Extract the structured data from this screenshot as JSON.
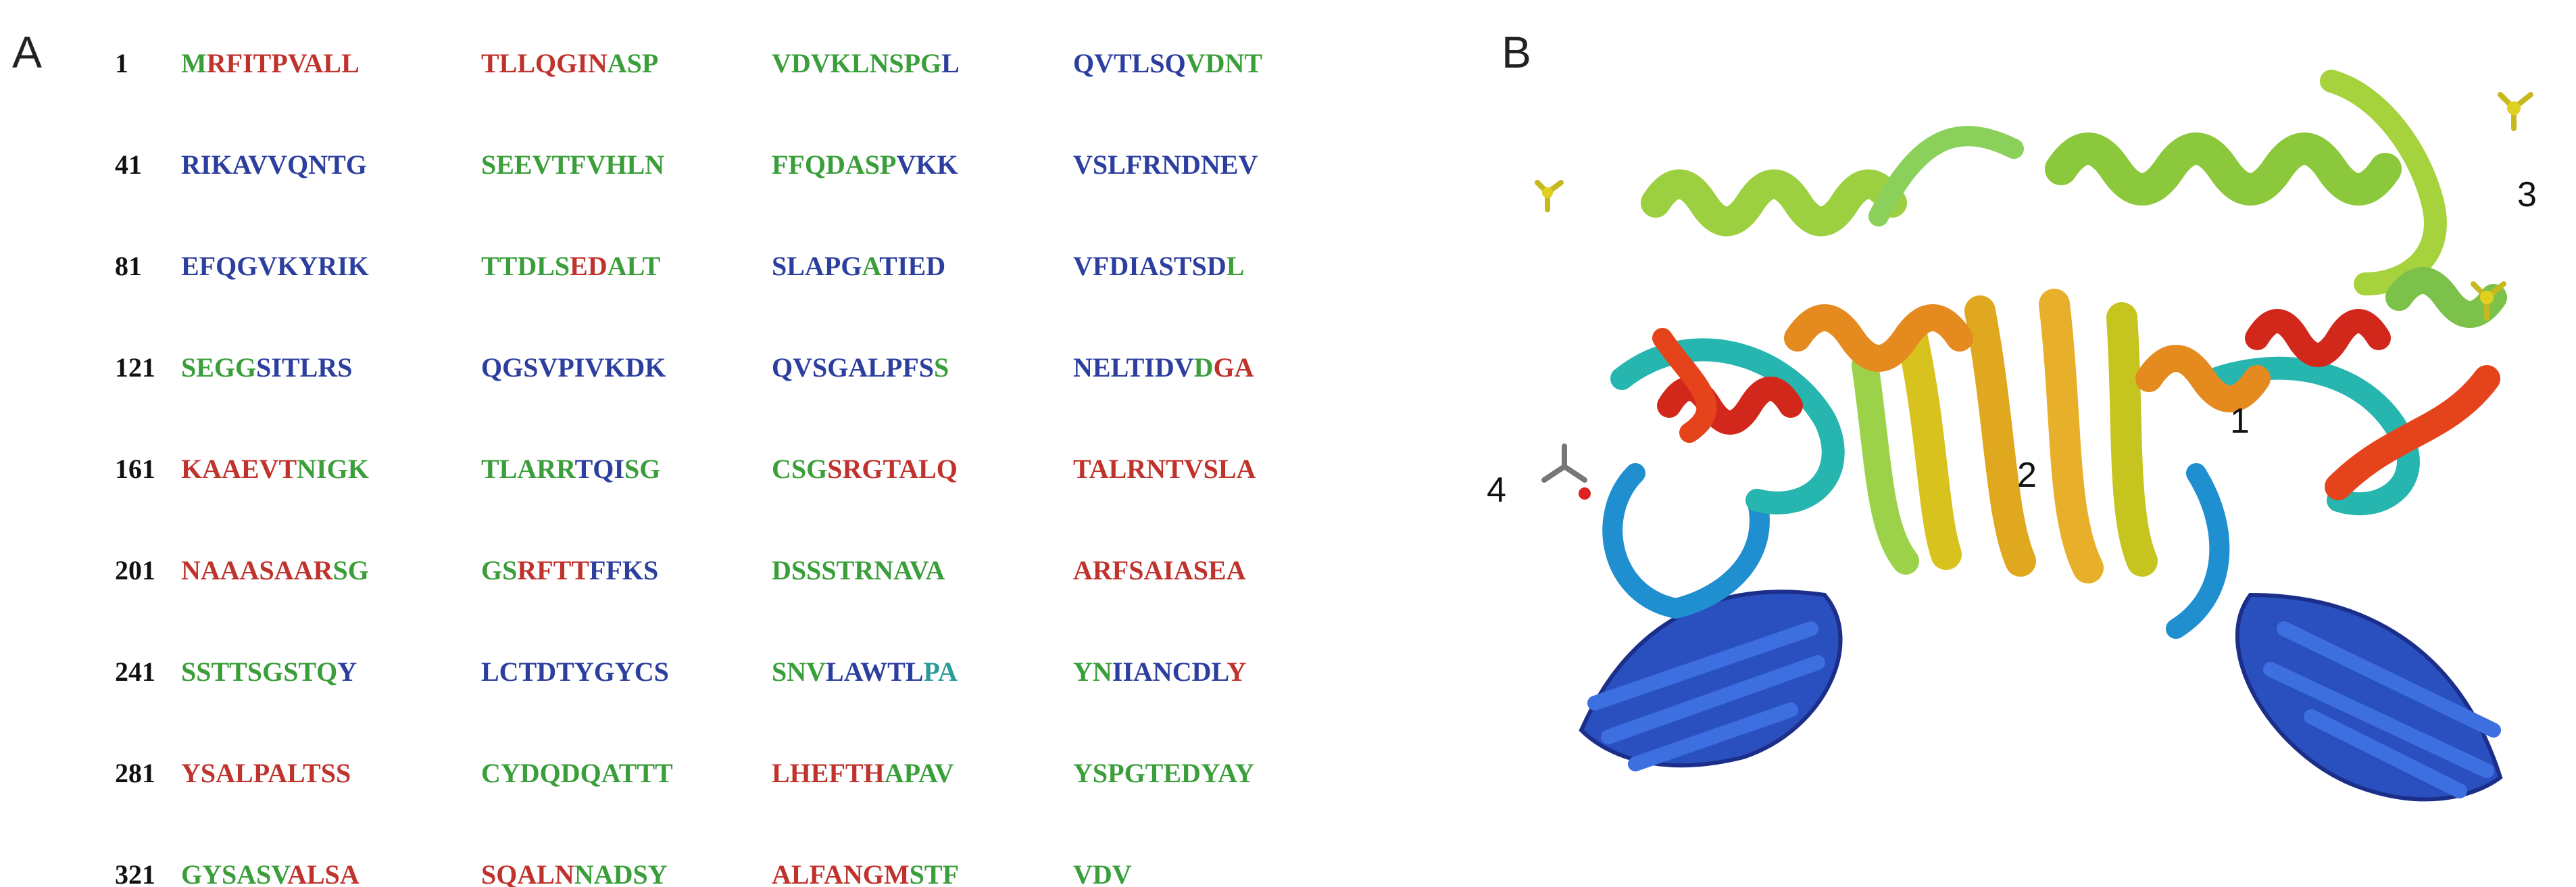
{
  "panels": [
    {
      "label": "A"
    },
    {
      "label": "B",
      "site_labels": [
        "1",
        "2",
        "3",
        "4"
      ]
    }
  ],
  "sequence": {
    "rows": [
      {
        "number": 1,
        "blocks": [
          [
            {
              "text": "M",
              "color": "#3a9e3a"
            },
            {
              "text": "RFITPVALL",
              "color": "#c0322c"
            }
          ],
          [
            {
              "text": "TLLQGIN",
              "color": "#c0322c"
            },
            {
              "text": "ASP",
              "color": "#3a9e3a"
            }
          ],
          [
            {
              "text": "VDVKLNSPG",
              "color": "#3a9e3a"
            },
            {
              "text": "L",
              "color": "#2d3f9e"
            }
          ],
          [
            {
              "text": "QVTLSQ",
              "color": "#2d3f9e"
            },
            {
              "text": "VDNT",
              "color": "#3a9e3a"
            }
          ]
        ]
      },
      {
        "number": 41,
        "blocks": [
          [
            {
              "text": "RIKAVVQNTG",
              "color": "#2d3f9e"
            }
          ],
          [
            {
              "text": "SEEVTFVHLN",
              "color": "#3a9e3a"
            }
          ],
          [
            {
              "text": "FFQDASP",
              "color": "#3a9e3a"
            },
            {
              "text": "VKK",
              "color": "#2d3f9e"
            }
          ],
          [
            {
              "text": "VSLFRNDNEV",
              "color": "#2d3f9e"
            }
          ]
        ]
      },
      {
        "number": 81,
        "blocks": [
          [
            {
              "text": "EFQGVKYRIK",
              "color": "#2d3f9e"
            }
          ],
          [
            {
              "text": "TTDLS",
              "color": "#3a9e3a"
            },
            {
              "text": "ED",
              "color": "#c0322c"
            },
            {
              "text": "ALT",
              "color": "#3a9e3a"
            }
          ],
          [
            {
              "text": "SLAPG",
              "color": "#2d3f9e"
            },
            {
              "text": "A",
              "color": "#3a9e3a"
            },
            {
              "text": "TIED",
              "color": "#2d3f9e"
            }
          ],
          [
            {
              "text": "VFDIASTSD",
              "color": "#2d3f9e"
            },
            {
              "text": "L",
              "color": "#3a9e3a"
            }
          ]
        ]
      },
      {
        "number": 121,
        "blocks": [
          [
            {
              "text": "SEGG",
              "color": "#3a9e3a"
            },
            {
              "text": "SITLRS",
              "color": "#2d3f9e"
            }
          ],
          [
            {
              "text": "QGSVPIVKDK",
              "color": "#2d3f9e"
            }
          ],
          [
            {
              "text": "QVSGALPFS",
              "color": "#2d3f9e"
            },
            {
              "text": "S",
              "color": "#3a9e3a"
            }
          ],
          [
            {
              "text": "NELTIDV",
              "color": "#2d3f9e"
            },
            {
              "text": "D",
              "color": "#3a9e3a"
            },
            {
              "text": "GA",
              "color": "#c0322c"
            }
          ]
        ]
      },
      {
        "number": 161,
        "blocks": [
          [
            {
              "text": "KAAEVT",
              "color": "#c0322c"
            },
            {
              "text": "NIGK",
              "color": "#3a9e3a"
            }
          ],
          [
            {
              "text": "TLARR",
              "color": "#3a9e3a"
            },
            {
              "text": "TQI",
              "color": "#2d3f9e"
            },
            {
              "text": "SG",
              "color": "#3a9e3a"
            }
          ],
          [
            {
              "text": "CSG",
              "color": "#3a9e3a"
            },
            {
              "text": "SRGTALQ",
              "color": "#c0322c"
            }
          ],
          [
            {
              "text": "TALRNTVSLA",
              "color": "#c0322c"
            }
          ]
        ]
      },
      {
        "number": 201,
        "blocks": [
          [
            {
              "text": "NAAASAAR",
              "color": "#c0322c"
            },
            {
              "text": "SG",
              "color": "#3a9e3a"
            }
          ],
          [
            {
              "text": "GS",
              "color": "#3a9e3a"
            },
            {
              "text": "RFTT",
              "color": "#c0322c"
            },
            {
              "text": "FFKS",
              "color": "#2d3f9e"
            }
          ],
          [
            {
              "text": "DSSSTRNAVA",
              "color": "#3a9e3a"
            }
          ],
          [
            {
              "text": "ARFSAIASEA",
              "color": "#c0322c"
            }
          ]
        ]
      },
      {
        "number": 241,
        "blocks": [
          [
            {
              "text": "SSTTSGSTQ",
              "color": "#3a9e3a"
            },
            {
              "text": "Y",
              "color": "#2d3f9e"
            }
          ],
          [
            {
              "text": "LCTDTYGYCS",
              "color": "#2d3f9e"
            }
          ],
          [
            {
              "text": "SNV",
              "color": "#3a9e3a"
            },
            {
              "text": "LAWTL",
              "color": "#2d3f9e"
            },
            {
              "text": "PA",
              "color": "#2a9a9a"
            }
          ],
          [
            {
              "text": "YN",
              "color": "#3a9e3a"
            },
            {
              "text": "IIANCDL",
              "color": "#2d3f9e"
            },
            {
              "text": "Y",
              "color": "#c0322c"
            }
          ]
        ]
      },
      {
        "number": 281,
        "blocks": [
          [
            {
              "text": "YSALPALTSS",
              "color": "#c0322c"
            }
          ],
          [
            {
              "text": "CYDQDQATTT",
              "color": "#3a9e3a"
            }
          ],
          [
            {
              "text": "LHEFTH",
              "color": "#c0322c"
            },
            {
              "text": "APAV",
              "color": "#3a9e3a"
            }
          ],
          [
            {
              "text": "YSPGTEDYAY",
              "color": "#3a9e3a"
            }
          ]
        ]
      },
      {
        "number": 321,
        "blocks": [
          [
            {
              "text": "GYSASV",
              "color": "#3a9e3a"
            },
            {
              "text": "ALSA",
              "color": "#c0322c"
            }
          ],
          [
            {
              "text": "SQALN",
              "color": "#c0322c"
            },
            {
              "text": "NADSY",
              "color": "#3a9e3a"
            }
          ],
          [
            {
              "text": "ALFANGM",
              "color": "#c0322c"
            },
            {
              "text": "STF",
              "color": "#3a9e3a"
            }
          ],
          [
            {
              "text": "VDV",
              "color": "#3a9e3a"
            }
          ]
        ]
      }
    ]
  }
}
